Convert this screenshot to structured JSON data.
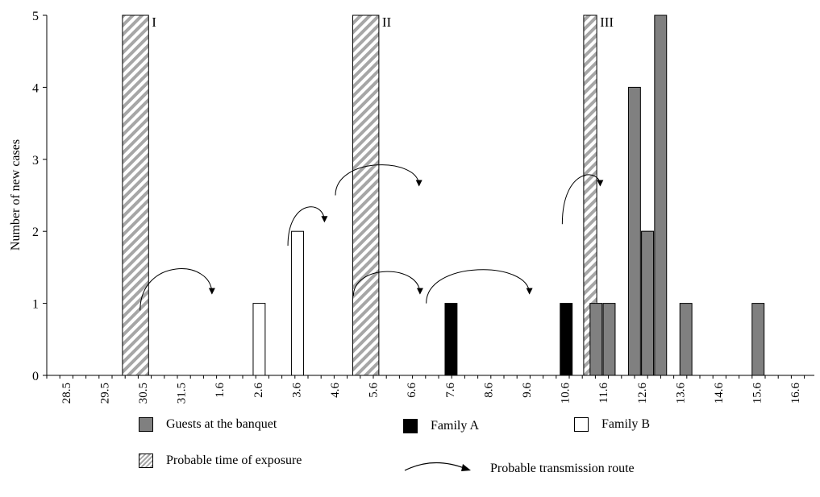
{
  "chart_data": {
    "type": "bar",
    "ylabel": "Number of new cases",
    "ylim": [
      0,
      5
    ],
    "yticks": [
      "0",
      "1",
      "2",
      "3",
      "4",
      "5"
    ],
    "x_tick_labels": [
      "28.5",
      "29.5",
      "30.5",
      "31.5",
      "1.6",
      "2.6",
      "3.6",
      "4.6",
      "5.6",
      "6.6",
      "7.6",
      "8.6",
      "9.6",
      "10.6",
      "11.6",
      "12.6",
      "13.6",
      "14.6",
      "15.6",
      "16.6"
    ],
    "exposure_periods": [
      {
        "label": "I",
        "date": "30.5",
        "height": 5
      },
      {
        "label": "II",
        "date": "5.6",
        "height": 5
      },
      {
        "label": "III",
        "date": "11.6",
        "height": 5
      }
    ],
    "series": [
      {
        "name": "Family B",
        "color": "#ffffff",
        "points": [
          {
            "x": "2.6",
            "y": 1
          },
          {
            "x": "3.6",
            "y": 2
          }
        ]
      },
      {
        "name": "Family A",
        "color": "#000000",
        "points": [
          {
            "x": "7.6",
            "y": 1
          },
          {
            "x": "10.6",
            "y": 1
          },
          {
            "x": "12.6",
            "y": 2
          }
        ]
      },
      {
        "name": "Guests at the banquet",
        "color": "#808080",
        "points": [
          {
            "x": "11.6",
            "y": 1
          },
          {
            "x": "11.6",
            "y": 1
          },
          {
            "x": "12.6",
            "y": 4
          },
          {
            "x": "12.6",
            "y": 2
          },
          {
            "x": "12.6",
            "y": 5
          },
          {
            "x": "13.6",
            "y": 1
          },
          {
            "x": "15.6",
            "y": 1
          }
        ]
      }
    ],
    "legend": {
      "banquet": "Guests at the banquet",
      "familyA": "Family A",
      "familyB": "Family B",
      "exposure": "Probable time of exposure",
      "route": "Probable transmission route"
    }
  }
}
